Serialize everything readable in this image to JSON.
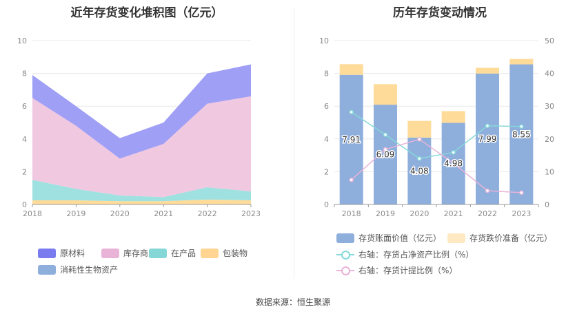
{
  "source_text": "数据来源：恒生聚源",
  "chart_data": [
    {
      "type": "area",
      "title": "近年存货变化堆积图（亿元）",
      "x": [
        "2018",
        "2019",
        "2020",
        "2021",
        "2022",
        "2023"
      ],
      "ylim": [
        0,
        10
      ],
      "yticks": [
        "0",
        "2",
        "4",
        "6",
        "8",
        "10"
      ],
      "stacked": true,
      "series": [
        {
          "name": "包装物",
          "color": "#ffdb99",
          "values": [
            0.25,
            0.25,
            0.2,
            0.2,
            0.3,
            0.25
          ]
        },
        {
          "name": "在产品",
          "color": "#9fe1e1",
          "values": [
            1.25,
            0.7,
            0.35,
            0.25,
            0.75,
            0.55
          ]
        },
        {
          "name": "库存商品",
          "color": "#f0c8e0",
          "values": [
            5.0,
            3.85,
            2.25,
            3.25,
            5.1,
            5.8
          ]
        },
        {
          "name": "原材料",
          "color": "#9f9ff6",
          "values": [
            1.4,
            1.2,
            1.25,
            1.3,
            1.85,
            1.95
          ]
        },
        {
          "name": "消耗性生物资产",
          "color": "#8eaedc",
          "values": [
            0,
            0,
            0,
            0,
            0,
            0
          ]
        }
      ],
      "legend": [
        {
          "name": "原材料",
          "color": "#7b7bf0"
        },
        {
          "name": "库存商品",
          "color": "#e9b3d8"
        },
        {
          "name": "在产品",
          "color": "#85d7d7"
        },
        {
          "name": "包装物",
          "color": "#ffd591"
        },
        {
          "name": "消耗性生物资产",
          "color": "#8eaedc"
        }
      ],
      "legend_position": "bottom",
      "grid": true
    },
    {
      "type": "bar",
      "title": "历年存货变动情况",
      "categories": [
        "2018",
        "2019",
        "2020",
        "2021",
        "2022",
        "2023"
      ],
      "ylim": [
        0,
        10
      ],
      "yticks": [
        "0",
        "2",
        "4",
        "6",
        "8",
        "10"
      ],
      "y2lim": [
        0,
        50
      ],
      "y2ticks": [
        "0",
        "10",
        "20",
        "30",
        "40",
        "50"
      ],
      "bars": [
        {
          "name": "存货账面价值（亿元）",
          "color": "#8eaedc",
          "values": [
            7.91,
            6.09,
            4.08,
            4.98,
            7.99,
            8.55
          ],
          "labels": [
            "7.91",
            "6.09",
            "4.08",
            "4.98",
            "7.99",
            "8.55"
          ]
        },
        {
          "name": "存货跌价准备（亿元）",
          "color": "#ffdb99",
          "values": [
            0.65,
            1.25,
            1.02,
            0.72,
            0.35,
            0.33
          ]
        }
      ],
      "lines": [
        {
          "name": "右轴：存货占净资产比例（%）",
          "color": "#86d9d9",
          "axis": "right",
          "values": [
            28.2,
            21.3,
            14.0,
            15.9,
            24.0,
            23.8
          ]
        },
        {
          "name": "右轴：存货计提比例（%）",
          "color": "#e9b3d8",
          "axis": "right",
          "values": [
            7.5,
            16.8,
            19.9,
            12.6,
            4.2,
            3.6
          ]
        }
      ],
      "legend_position": "bottom",
      "grid": true
    }
  ]
}
